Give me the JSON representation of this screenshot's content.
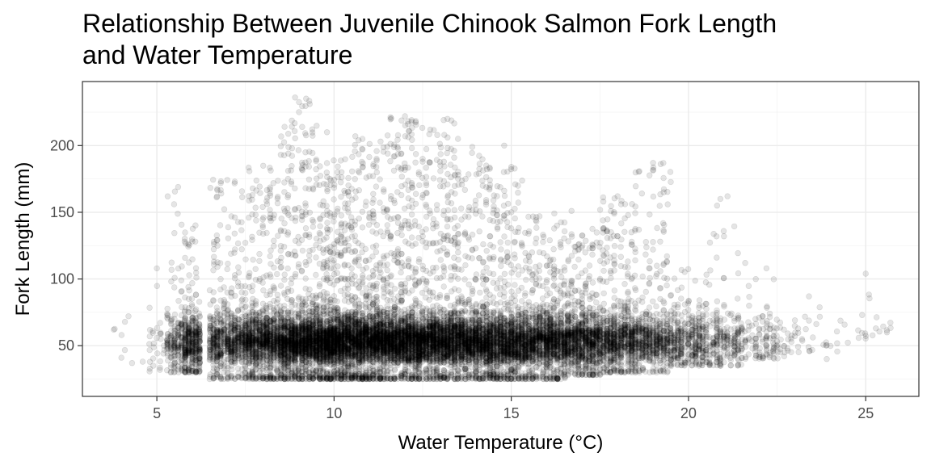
{
  "chart_data": {
    "type": "scatter",
    "title": "Relationship Between Juvenile Chinook Salmon Fork Length and Water Temperature",
    "title_lines": [
      "Relationship Between Juvenile Chinook Salmon Fork Length",
      "and Water Temperature"
    ],
    "xlabel": "Water Temperature (°C)",
    "ylabel": "Fork Length (mm)",
    "xlim": [
      2.9,
      26.5
    ],
    "ylim": [
      12,
      248
    ],
    "x_ticks": [
      5,
      10,
      15,
      20,
      25
    ],
    "y_ticks": [
      50,
      100,
      150,
      200
    ],
    "grid": true,
    "point_color": "#000000",
    "point_alpha": 0.1,
    "theme": "bw",
    "density_profile": [
      {
        "x": 4.0,
        "ymin": 35,
        "ymax": 72,
        "n": 12
      },
      {
        "x": 5.0,
        "ymin": 30,
        "ymax": 108,
        "n": 60
      },
      {
        "x": 5.5,
        "ymin": 30,
        "ymax": 168,
        "n": 400
      },
      {
        "x": 6.0,
        "ymin": 30,
        "ymax": 148,
        "n": 900
      },
      {
        "x": 7.0,
        "ymin": 25,
        "ymax": 175,
        "n": 1500
      },
      {
        "x": 8.0,
        "ymin": 25,
        "ymax": 185,
        "n": 2200
      },
      {
        "x": 9.0,
        "ymin": 25,
        "ymax": 236,
        "n": 3000
      },
      {
        "x": 10.0,
        "ymin": 25,
        "ymax": 190,
        "n": 3400
      },
      {
        "x": 11.0,
        "ymin": 25,
        "ymax": 205,
        "n": 3200
      },
      {
        "x": 12.0,
        "ymin": 25,
        "ymax": 222,
        "n": 3000
      },
      {
        "x": 13.0,
        "ymin": 25,
        "ymax": 220,
        "n": 2800
      },
      {
        "x": 14.0,
        "ymin": 25,
        "ymax": 195,
        "n": 2600
      },
      {
        "x": 15.0,
        "ymin": 25,
        "ymax": 185,
        "n": 2400
      },
      {
        "x": 16.0,
        "ymin": 25,
        "ymax": 150,
        "n": 2200
      },
      {
        "x": 17.0,
        "ymin": 28,
        "ymax": 140,
        "n": 2000
      },
      {
        "x": 18.0,
        "ymin": 30,
        "ymax": 162,
        "n": 1600
      },
      {
        "x": 19.0,
        "ymin": 30,
        "ymax": 187,
        "n": 1200
      },
      {
        "x": 20.0,
        "ymin": 35,
        "ymax": 110,
        "n": 800
      },
      {
        "x": 21.0,
        "ymin": 35,
        "ymax": 162,
        "n": 500
      },
      {
        "x": 22.0,
        "ymin": 40,
        "ymax": 108,
        "n": 250
      },
      {
        "x": 23.0,
        "ymin": 45,
        "ymax": 88,
        "n": 80
      },
      {
        "x": 24.0,
        "ymin": 40,
        "ymax": 82,
        "n": 30
      },
      {
        "x": 25.0,
        "ymin": 55,
        "ymax": 104,
        "n": 20
      },
      {
        "x": 25.5,
        "ymin": 60,
        "ymax": 78,
        "n": 15
      }
    ],
    "outlier_points": [
      {
        "x": 8.9,
        "y": 236
      },
      {
        "x": 12.0,
        "y": 222
      },
      {
        "x": 13.2,
        "y": 220
      },
      {
        "x": 9.1,
        "y": 214
      },
      {
        "x": 9.8,
        "y": 210
      },
      {
        "x": 10.6,
        "y": 207
      },
      {
        "x": 10.8,
        "y": 205
      },
      {
        "x": 14.8,
        "y": 200
      },
      {
        "x": 13.9,
        "y": 199
      },
      {
        "x": 11.9,
        "y": 194
      },
      {
        "x": 12.5,
        "y": 190
      },
      {
        "x": 15.0,
        "y": 184
      },
      {
        "x": 19.0,
        "y": 187
      },
      {
        "x": 19.3,
        "y": 165
      },
      {
        "x": 20.9,
        "y": 160
      },
      {
        "x": 21.1,
        "y": 162
      },
      {
        "x": 18.0,
        "y": 162
      },
      {
        "x": 18.1,
        "y": 156
      },
      {
        "x": 21.0,
        "y": 132
      },
      {
        "x": 19.2,
        "y": 128
      },
      {
        "x": 5.6,
        "y": 169
      },
      {
        "x": 4.0,
        "y": 41
      },
      {
        "x": 4.2,
        "y": 72
      },
      {
        "x": 4.3,
        "y": 37
      },
      {
        "x": 4.6,
        "y": 38
      },
      {
        "x": 4.9,
        "y": 35
      },
      {
        "x": 5.0,
        "y": 108
      },
      {
        "x": 4.8,
        "y": 57
      },
      {
        "x": 22.2,
        "y": 108
      },
      {
        "x": 21.6,
        "y": 112
      },
      {
        "x": 23.4,
        "y": 87
      },
      {
        "x": 25.0,
        "y": 104
      },
      {
        "x": 23.9,
        "y": 40
      },
      {
        "x": 22.7,
        "y": 42
      },
      {
        "x": 25.6,
        "y": 60
      },
      {
        "x": 24.9,
        "y": 73
      },
      {
        "x": 16.7,
        "y": 151
      },
      {
        "x": 15.0,
        "y": 150
      },
      {
        "x": 13.0,
        "y": 185
      },
      {
        "x": 12.6,
        "y": 172
      },
      {
        "x": 11.2,
        "y": 190
      },
      {
        "x": 8.7,
        "y": 175
      }
    ]
  }
}
